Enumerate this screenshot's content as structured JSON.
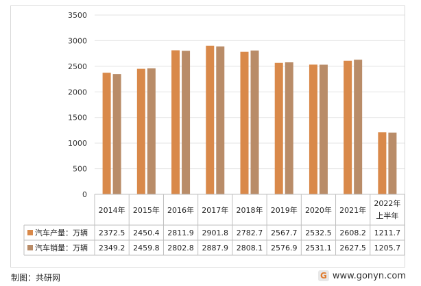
{
  "chart_data": {
    "type": "bar",
    "categories": [
      "2014年",
      "2015年",
      "2016年",
      "2017年",
      "2018年",
      "2019年",
      "2020年",
      "2021年",
      "2022年上半年"
    ],
    "category_lines": [
      [
        "2014年"
      ],
      [
        "2015年"
      ],
      [
        "2016年"
      ],
      [
        "2017年"
      ],
      [
        "2018年"
      ],
      [
        "2019年"
      ],
      [
        "2020年"
      ],
      [
        "2021年"
      ],
      [
        "2022年",
        "上半年"
      ]
    ],
    "series": [
      {
        "name": "汽车产量：万辆",
        "color": "#d9894a",
        "values": [
          2372.5,
          2450.4,
          2811.9,
          2901.8,
          2782.7,
          2567.7,
          2532.5,
          2608.2,
          1211.7
        ],
        "labels": [
          "2372.5",
          "2450.4",
          "2811.9",
          "2901.8",
          "2782.7",
          "2567.7",
          "2532.5",
          "2608.2",
          "1211.7"
        ]
      },
      {
        "name": "汽车销量：万辆",
        "color": "#b98c68",
        "values": [
          2349.2,
          2459.8,
          2802.8,
          2887.9,
          2808.1,
          2576.9,
          2531.1,
          2627.5,
          1205.7
        ],
        "labels": [
          "2349.2",
          "2459.8",
          "2802.8",
          "2887.9",
          "2808.1",
          "2576.9",
          "2531.1",
          "2627.5",
          "1205.7"
        ]
      }
    ],
    "yticks": [
      "0",
      "500",
      "1000",
      "1500",
      "2000",
      "2500",
      "3000",
      "3500"
    ],
    "ylim": [
      0,
      3500
    ],
    "grid": true,
    "legend": "data-table-left"
  },
  "footer": {
    "source": "制图：共研网",
    "watermark_logo": "G",
    "watermark_url": "www.gonyn.com"
  },
  "colors": {
    "gridline": "#e3e3e3",
    "table_border": "#bfbfbf",
    "production": "#d9894a",
    "sales": "#b98c68"
  }
}
